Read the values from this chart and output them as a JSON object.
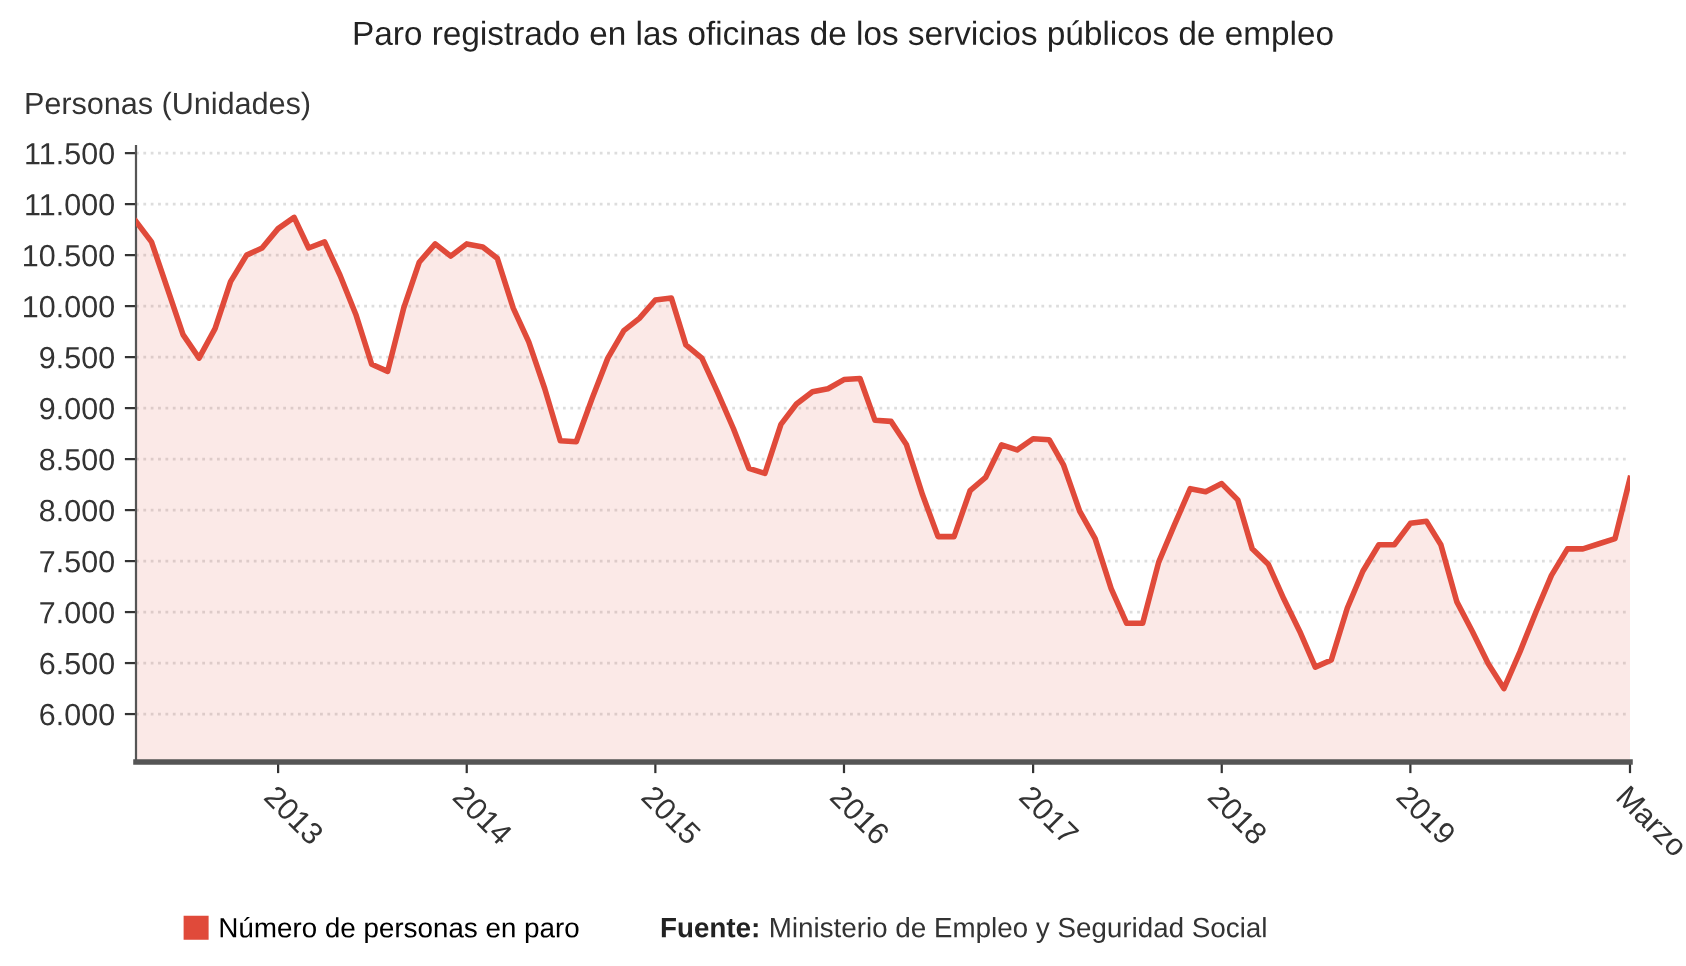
{
  "chart_data": {
    "type": "area",
    "title": "Paro registrado en las oficinas de los servicios públicos de empleo",
    "ylabel": "Personas (Unidades)",
    "x": [
      "2012-04",
      "2012-05",
      "2012-06",
      "2012-07",
      "2012-08",
      "2012-09",
      "2012-10",
      "2012-11",
      "2012-12",
      "2013-01",
      "2013-02",
      "2013-03",
      "2013-04",
      "2013-05",
      "2013-06",
      "2013-07",
      "2013-08",
      "2013-09",
      "2013-10",
      "2013-11",
      "2013-12",
      "2014-01",
      "2014-02",
      "2014-03",
      "2014-04",
      "2014-05",
      "2014-06",
      "2014-07",
      "2014-08",
      "2014-09",
      "2014-10",
      "2014-11",
      "2014-12",
      "2015-01",
      "2015-02",
      "2015-03",
      "2015-04",
      "2015-05",
      "2015-06",
      "2015-07",
      "2015-08",
      "2015-09",
      "2015-10",
      "2015-11",
      "2015-12",
      "2016-01",
      "2016-02",
      "2016-03",
      "2016-04",
      "2016-05",
      "2016-06",
      "2016-07",
      "2016-08",
      "2016-09",
      "2016-10",
      "2016-11",
      "2016-12",
      "2017-01",
      "2017-02",
      "2017-03",
      "2017-04",
      "2017-05",
      "2017-06",
      "2017-07",
      "2017-08",
      "2017-09",
      "2017-10",
      "2017-11",
      "2017-12",
      "2018-01",
      "2018-02",
      "2018-03",
      "2018-04",
      "2018-05",
      "2018-06",
      "2018-07",
      "2018-08",
      "2018-09",
      "2018-10",
      "2018-11",
      "2018-12",
      "2019-01",
      "2019-02",
      "2019-03",
      "2019-04",
      "2019-05",
      "2019-06",
      "2019-07",
      "2019-08",
      "2019-09",
      "2019-10",
      "2019-11",
      "2019-12",
      "2020-01",
      "2020-02",
      "2020-03"
    ],
    "series": [
      {
        "name": "Número de personas en paro",
        "color": "#e04a3a",
        "values": [
          10830,
          10630,
          10170,
          9720,
          9490,
          9780,
          10240,
          10500,
          10570,
          10760,
          10870,
          10570,
          10630,
          10300,
          9910,
          9430,
          9360,
          9980,
          10430,
          10610,
          10490,
          10610,
          10580,
          10470,
          9980,
          9650,
          9190,
          8680,
          8670,
          9100,
          9490,
          9760,
          9880,
          10060,
          10080,
          9620,
          9490,
          9160,
          8800,
          8410,
          8360,
          8840,
          9040,
          9160,
          9190,
          9280,
          9290,
          8880,
          8870,
          8640,
          8150,
          7740,
          7740,
          8190,
          8320,
          8640,
          8590,
          8700,
          8690,
          8440,
          7990,
          7720,
          7230,
          6890,
          6890,
          7490,
          7850,
          8210,
          8180,
          8260,
          8100,
          7620,
          7470,
          7130,
          6810,
          6460,
          6530,
          7040,
          7400,
          7660,
          7660,
          7870,
          7890,
          7660,
          7100,
          6810,
          6490,
          6250,
          6610,
          7000,
          7360,
          7620,
          7620,
          7670,
          7720,
          8310
        ]
      }
    ],
    "xlim": [
      "2012-04",
      "2020-03"
    ],
    "xticks": [
      {
        "value": "2013-01",
        "label": "2013"
      },
      {
        "value": "2014-01",
        "label": "2014"
      },
      {
        "value": "2015-01",
        "label": "2015"
      },
      {
        "value": "2016-01",
        "label": "2016"
      },
      {
        "value": "2017-01",
        "label": "2017"
      },
      {
        "value": "2018-01",
        "label": "2018"
      },
      {
        "value": "2019-01",
        "label": "2019"
      },
      {
        "value": "2020-03",
        "label": "Marzo"
      }
    ],
    "ylim": [
      5530,
      11570
    ],
    "yticks": [
      {
        "value": 6000,
        "label": "6.000"
      },
      {
        "value": 6500,
        "label": "6.500"
      },
      {
        "value": 7000,
        "label": "7.000"
      },
      {
        "value": 7500,
        "label": "7.500"
      },
      {
        "value": 8000,
        "label": "8.000"
      },
      {
        "value": 8500,
        "label": "8.500"
      },
      {
        "value": 9000,
        "label": "9.000"
      },
      {
        "value": 9500,
        "label": "9.500"
      },
      {
        "value": 10000,
        "label": "10.000"
      },
      {
        "value": 10500,
        "label": "10.500"
      },
      {
        "value": 11000,
        "label": "11.000"
      },
      {
        "value": 11500,
        "label": "11.500"
      }
    ],
    "grid": "y",
    "legend": "bottom",
    "marker": "none",
    "line_style": "solid",
    "annotations": [
      "Fuente: Ministerio de Empleo y Seguridad Social"
    ]
  }
}
